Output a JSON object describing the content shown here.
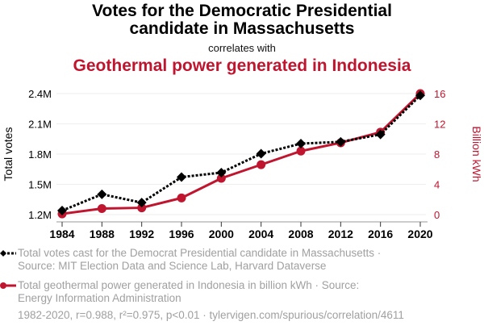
{
  "header": {
    "title": "Votes for the Democratic Presidential candidate in Massachusetts",
    "title_line1": "Votes for the Democratic Presidential",
    "title_line2": "candidate in Massachusetts",
    "subtitle": "correlates with",
    "title2": "Geothermal power generated in Indonesia"
  },
  "legend": {
    "series1_line1": "Total votes cast for the Democrat Presidential candidate in Massachusetts ·",
    "series1_line2": "Source: MIT Election Data and Science Lab, Harvard Dataverse",
    "series2_line1": "Total geothermal power generated in Indonesia in billion kWh · Source:",
    "series2_line2": "Energy Information Administration"
  },
  "footer": "1982-2020, r=0.988, r²=0.975, p<0.01 · tylervigen.com/spurious/correlation/4611",
  "colors": {
    "series1": "#000000",
    "series2": "#c0152f",
    "grid": "#eeeeee",
    "legend_text": "#a0a0a0"
  },
  "chart_data": {
    "type": "line",
    "title": "Votes for the Democratic Presidential candidate in Massachusetts correlates with Geothermal power generated in Indonesia",
    "x": [
      1984,
      1988,
      1992,
      1996,
      2000,
      2004,
      2008,
      2012,
      2016,
      2020
    ],
    "x_tick_labels": [
      "1984",
      "1988",
      "1992",
      "1996",
      "2000",
      "2004",
      "2008",
      "2012",
      "2016",
      "2020"
    ],
    "ylabel_left": "Total votes",
    "ylabel_right": "Billion kWh",
    "y_left_ticks": [
      1200000,
      1500000,
      1800000,
      2100000,
      2400000
    ],
    "y_left_tick_labels": [
      "1.2M",
      "1.5M",
      "1.8M",
      "2.1M",
      "2.4M"
    ],
    "y_left_lim": [
      1200000,
      2400000
    ],
    "y_right_ticks": [
      0,
      4,
      8,
      12,
      16
    ],
    "y_right_tick_labels": [
      "0",
      "4",
      "8",
      "12",
      "16"
    ],
    "y_right_lim": [
      0,
      16
    ],
    "grid": true,
    "legend_position": "bottom",
    "series": [
      {
        "name": "Total votes cast for the Democrat Presidential candidate in Massachusetts",
        "axis": "left",
        "style": "dotted",
        "marker": "diamond",
        "color": "#000000",
        "values": [
          1239606,
          1401415,
          1318662,
          1571763,
          1616487,
          1803800,
          1904097,
          1921290,
          1995196,
          2382202
        ]
      },
      {
        "name": "Total geothermal power generated in Indonesia in billion kWh",
        "axis": "right",
        "style": "solid",
        "marker": "circle",
        "color": "#c0152f",
        "values": [
          0.1,
          0.8,
          0.9,
          2.2,
          4.8,
          6.6,
          8.4,
          9.5,
          10.9,
          16.0
        ]
      }
    ]
  }
}
